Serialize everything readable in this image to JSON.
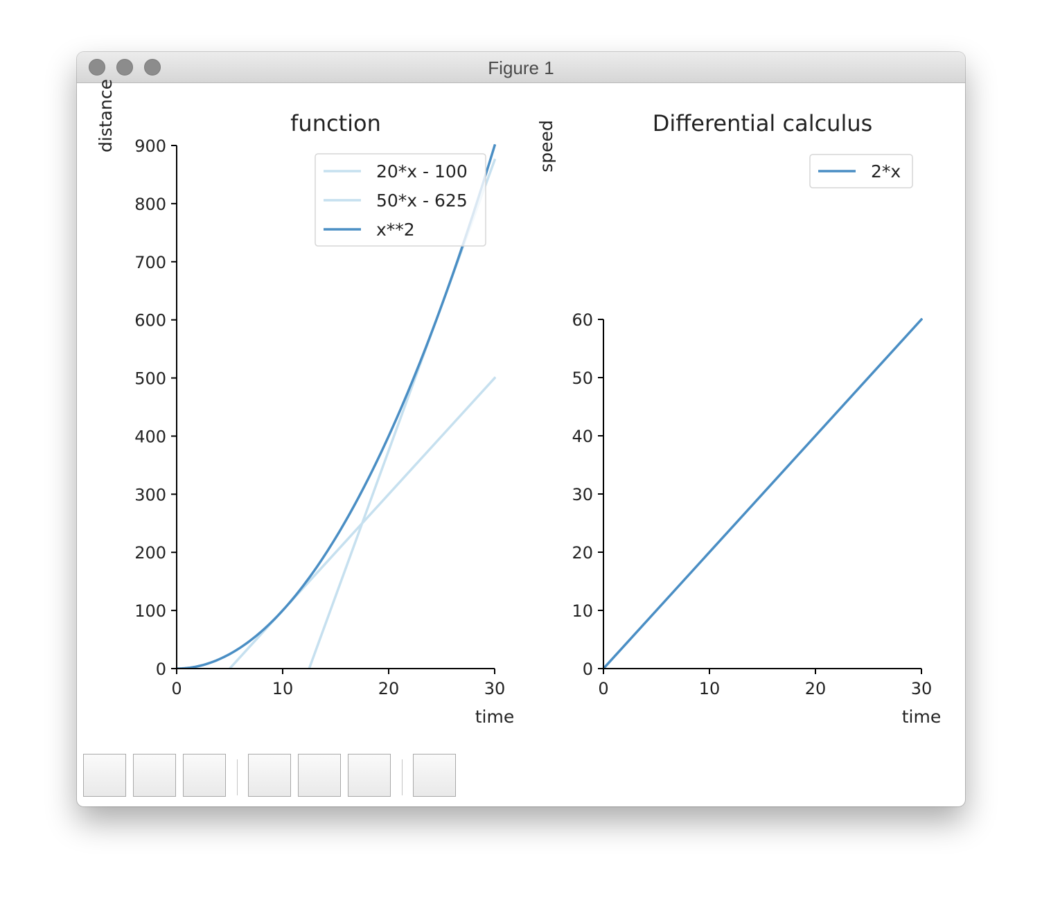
{
  "window": {
    "title": "Figure 1"
  },
  "colors": {
    "light_line": "#c6e0ef",
    "dark_line": "#4a8ec4",
    "axis": "#000000"
  },
  "chart_data": [
    {
      "type": "line",
      "title": "function",
      "xlabel": "time",
      "ylabel": "distance",
      "xlim": [
        0,
        30
      ],
      "ylim": [
        0,
        900
      ],
      "xticks": [
        0,
        10,
        20,
        30
      ],
      "yticks": [
        0,
        100,
        200,
        300,
        400,
        500,
        600,
        700,
        800,
        900
      ],
      "grid": false,
      "legend_position": "upper-right",
      "series": [
        {
          "name": "20*x - 100",
          "x": [
            5,
            30
          ],
          "y": [
            0,
            500
          ],
          "color": "#c6e0ef"
        },
        {
          "name": "50*x - 625",
          "x": [
            12.5,
            30
          ],
          "y": [
            0,
            875
          ],
          "color": "#c6e0ef"
        },
        {
          "name": "x**2",
          "x": [
            0,
            2,
            4,
            6,
            8,
            10,
            12,
            14,
            16,
            18,
            20,
            22,
            24,
            26,
            28,
            30
          ],
          "y": [
            0,
            4,
            16,
            36,
            64,
            100,
            144,
            196,
            256,
            324,
            400,
            484,
            576,
            676,
            784,
            900
          ],
          "color": "#4a8ec4"
        }
      ]
    },
    {
      "type": "line",
      "title": "Differential calculus",
      "xlabel": "time",
      "ylabel": "speed",
      "xlim": [
        0,
        30
      ],
      "ylim": [
        0,
        60
      ],
      "xticks": [
        0,
        10,
        20,
        30
      ],
      "yticks": [
        0,
        10,
        20,
        30,
        40,
        50,
        60
      ],
      "grid": false,
      "legend_position": "upper-right",
      "series": [
        {
          "name": "2*x",
          "x": [
            0,
            30
          ],
          "y": [
            0,
            60
          ],
          "color": "#4a8ec4"
        }
      ]
    }
  ],
  "toolbar": {
    "buttons": [
      "home",
      "back",
      "forward",
      "pan",
      "zoom",
      "subplots",
      "save"
    ]
  }
}
